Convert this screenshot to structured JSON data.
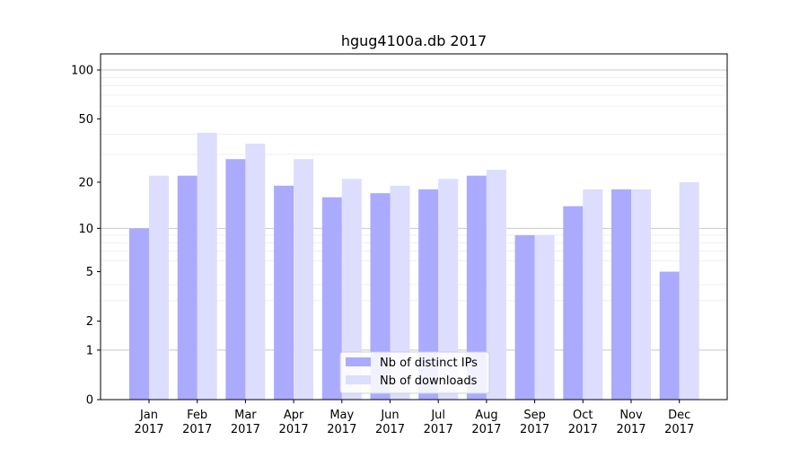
{
  "chart_data": {
    "type": "bar",
    "title": "hgug4100a.db 2017",
    "xlabel": "",
    "ylabel": "",
    "categories": [
      "Jan\n2017",
      "Feb\n2017",
      "Mar\n2017",
      "Apr\n2017",
      "May\n2017",
      "Jun\n2017",
      "Jul\n2017",
      "Aug\n2017",
      "Sep\n2017",
      "Oct\n2017",
      "Nov\n2017",
      "Dec\n2017"
    ],
    "series": [
      {
        "name": "Nb of distinct IPs",
        "color": "#aaaaff",
        "values": [
          10,
          22,
          28,
          19,
          16,
          17,
          18,
          22,
          9,
          14,
          18,
          5
        ]
      },
      {
        "name": "Nb of downloads",
        "color": "#ddddff",
        "values": [
          22,
          41,
          35,
          28,
          21,
          19,
          21,
          24,
          9,
          18,
          18,
          20
        ]
      }
    ],
    "yscale": "log(1+y)",
    "ylim": [
      0,
      120
    ],
    "yticks": [
      0,
      1,
      2,
      5,
      10,
      20,
      50,
      100
    ],
    "ytick_labels": [
      "0",
      "1",
      "2",
      "5",
      "10",
      "20",
      "50",
      "100"
    ],
    "grid": true,
    "legend": "lower-center"
  }
}
